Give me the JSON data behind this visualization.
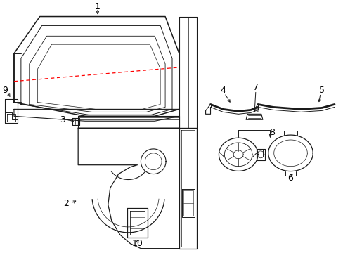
{
  "background_color": "#ffffff",
  "line_color": "#1a1a1a",
  "red_dash_color": "#ff0000",
  "label_color": "#000000",
  "label_fontsize": 9,
  "figsize": [
    4.89,
    3.6
  ],
  "dpi": 100
}
